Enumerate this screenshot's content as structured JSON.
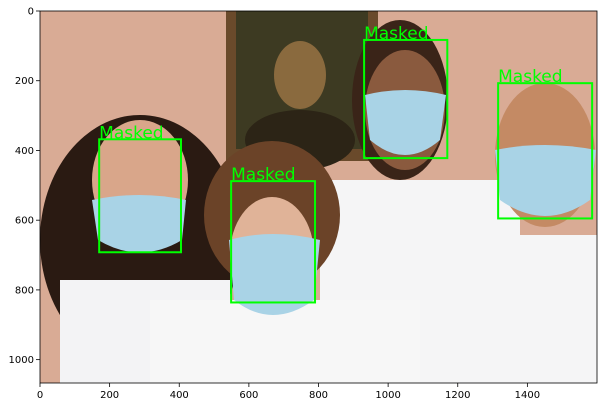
{
  "chart_data": {
    "type": "image",
    "xlim": [
      0,
      1600
    ],
    "ylim": [
      1067,
      0
    ],
    "xticks": [
      0,
      200,
      400,
      600,
      800,
      1000,
      1200,
      1400
    ],
    "yticks": [
      0,
      200,
      400,
      600,
      800,
      1000
    ],
    "color": "#00ff00",
    "boxes": [
      {
        "label": "Masked",
        "x": [
          170,
          405
        ],
        "y": [
          368,
          692
        ]
      },
      {
        "label": "Masked",
        "x": [
          549,
          790
        ],
        "y": [
          488,
          836
        ]
      },
      {
        "label": "Masked",
        "x": [
          931,
          1170
        ],
        "y": [
          83,
          422
        ]
      },
      {
        "label": "Masked",
        "x": [
          1316,
          1586
        ],
        "y": [
          207,
          595
        ]
      }
    ]
  }
}
